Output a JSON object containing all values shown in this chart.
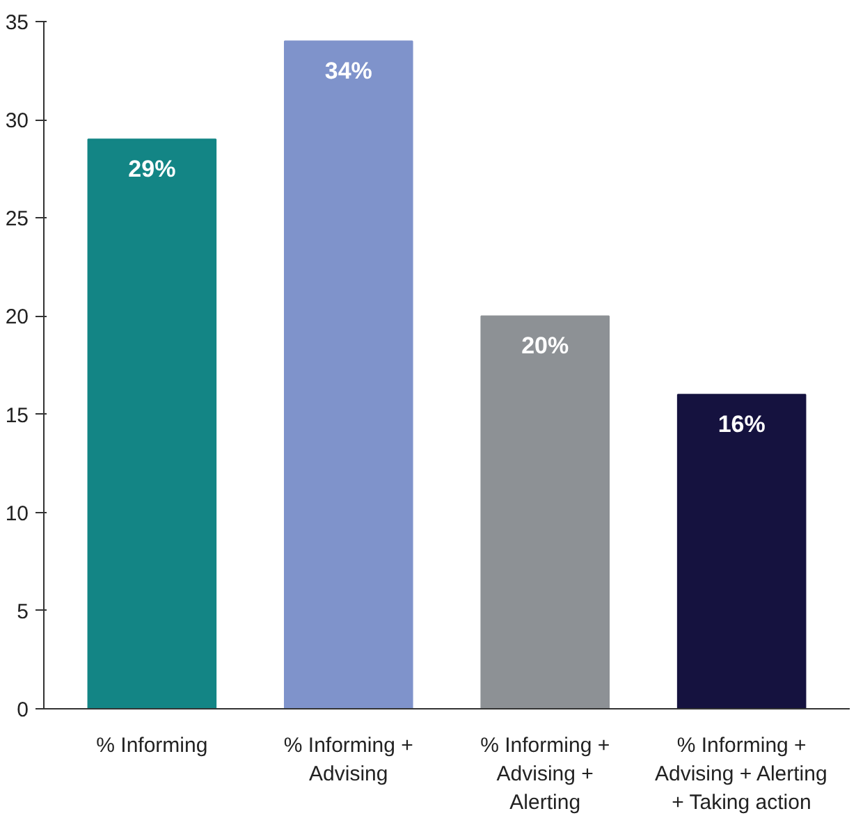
{
  "chart_data": {
    "type": "bar",
    "categories": [
      "% Informing",
      "% Informing +\nAdvising",
      "% Informing +\nAdvising +\nAlerting",
      "% Informing +\nAdvising + Alerting\n+ Taking action"
    ],
    "values": [
      29,
      34,
      20,
      16
    ],
    "colors": [
      "#138585",
      "#7f93cb",
      "#8d9195",
      "#15123f"
    ],
    "value_labels": [
      "29%",
      "34%",
      "20%",
      "16%"
    ],
    "ylim": [
      0,
      35
    ],
    "yticks": [
      0,
      5,
      10,
      15,
      20,
      25,
      30,
      35
    ],
    "grid": false
  }
}
